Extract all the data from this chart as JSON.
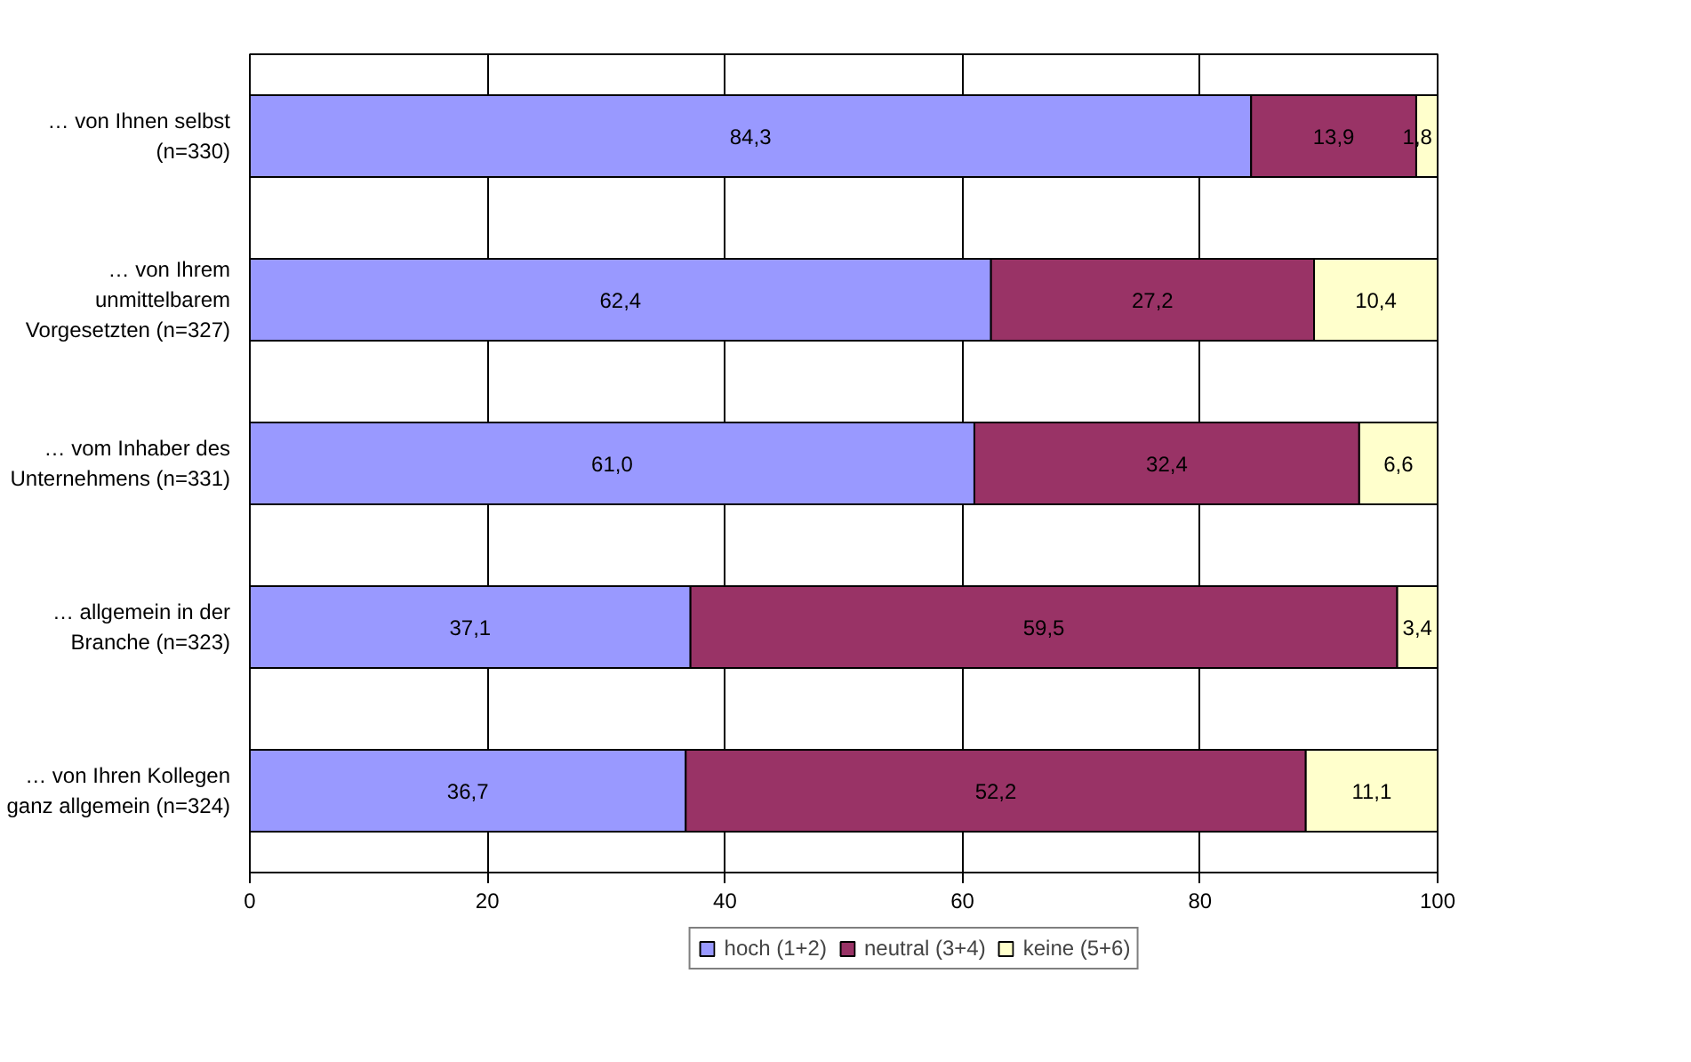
{
  "chart_data": {
    "type": "bar",
    "orientation": "horizontal",
    "stacked": true,
    "categories": [
      "… von Ihnen selbst\n(n=330)",
      "… von Ihrem\nunmittelbarem\nVorgesetzten (n=327)",
      "… vom Inhaber des\nUnternehmens (n=331)",
      "… allgemein in der\nBranche (n=323)",
      "… von Ihren Kollegen\nganz allgemein (n=324)"
    ],
    "series": [
      {
        "name": "hoch (1+2)",
        "color": "#9999ff",
        "values": [
          84.3,
          62.4,
          61.0,
          37.1,
          36.7
        ],
        "value_labels": [
          "84,3",
          "62,4",
          "61,0",
          "37,1",
          "36,7"
        ]
      },
      {
        "name": "neutral (3+4)",
        "color": "#993366",
        "values": [
          13.9,
          27.2,
          32.4,
          59.5,
          52.2
        ],
        "value_labels": [
          "13,9",
          "27,2",
          "32,4",
          "59,5",
          "52,2"
        ]
      },
      {
        "name": "keine (5+6)",
        "color": "#ffffcc",
        "values": [
          1.8,
          10.4,
          6.6,
          3.4,
          11.1
        ],
        "value_labels": [
          "1,8",
          "10,4",
          "6,6",
          "3,4",
          "11,1"
        ]
      }
    ],
    "xlim": [
      0,
      100
    ],
    "xticks": [
      0,
      20,
      40,
      60,
      80,
      100
    ],
    "grid": "x",
    "legend": "bottom"
  }
}
